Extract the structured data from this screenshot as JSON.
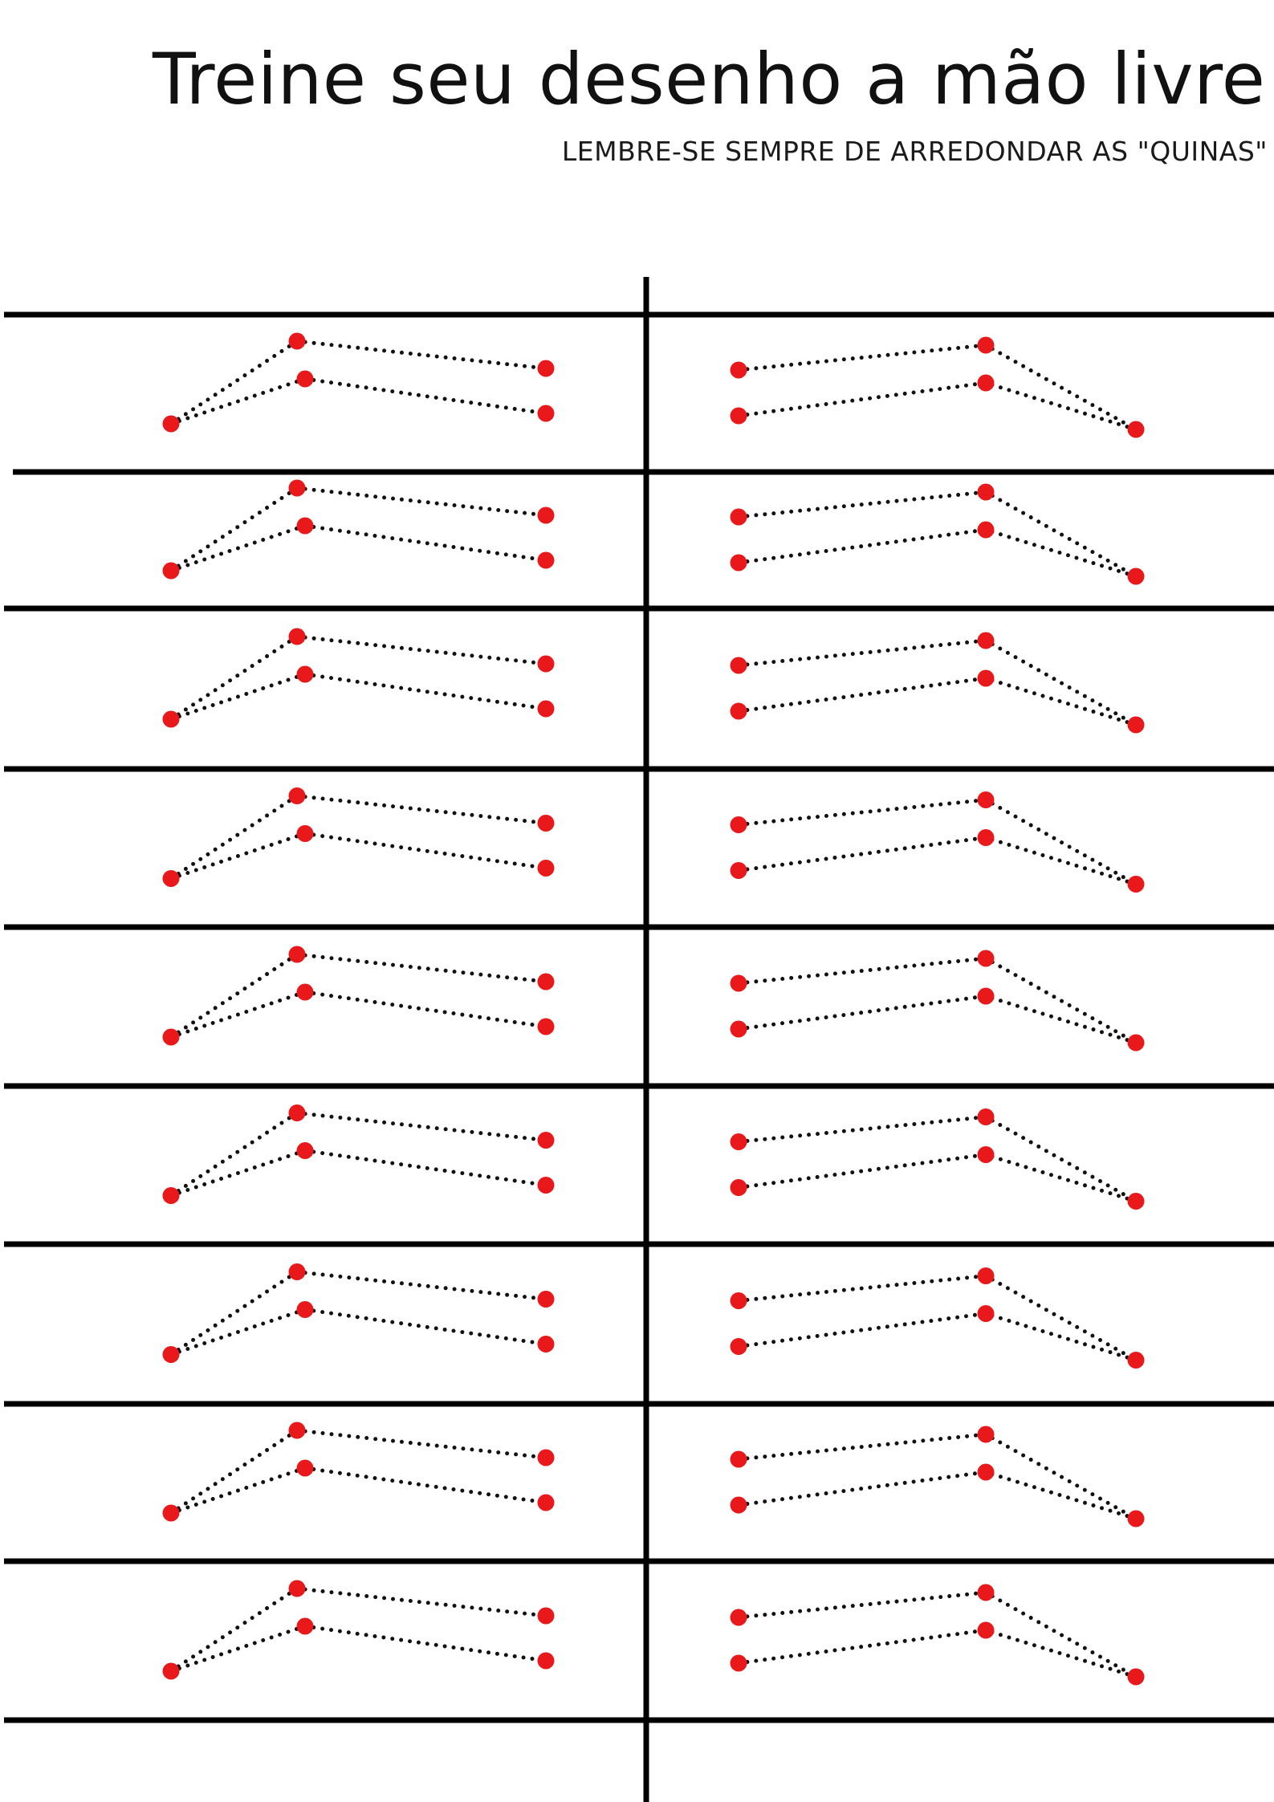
{
  "page": {
    "title": "Treine seu desenho a mão livre",
    "subtitle": "LEMBRE-SE SEMPRE DE ARREDONDAR AS \"QUINAS\""
  },
  "worksheet": {
    "rows": 9,
    "exercises_per_row": 2,
    "exercise_left": "two dotted lines fanning out to the right from one shared point, each bending downward at a middle point",
    "exercise_right": "two dotted lines converging to the right into one shared point, each bending downward at a middle point",
    "dot_color": "#e8181b",
    "line_color": "#111111",
    "rule_color": "#000000"
  }
}
